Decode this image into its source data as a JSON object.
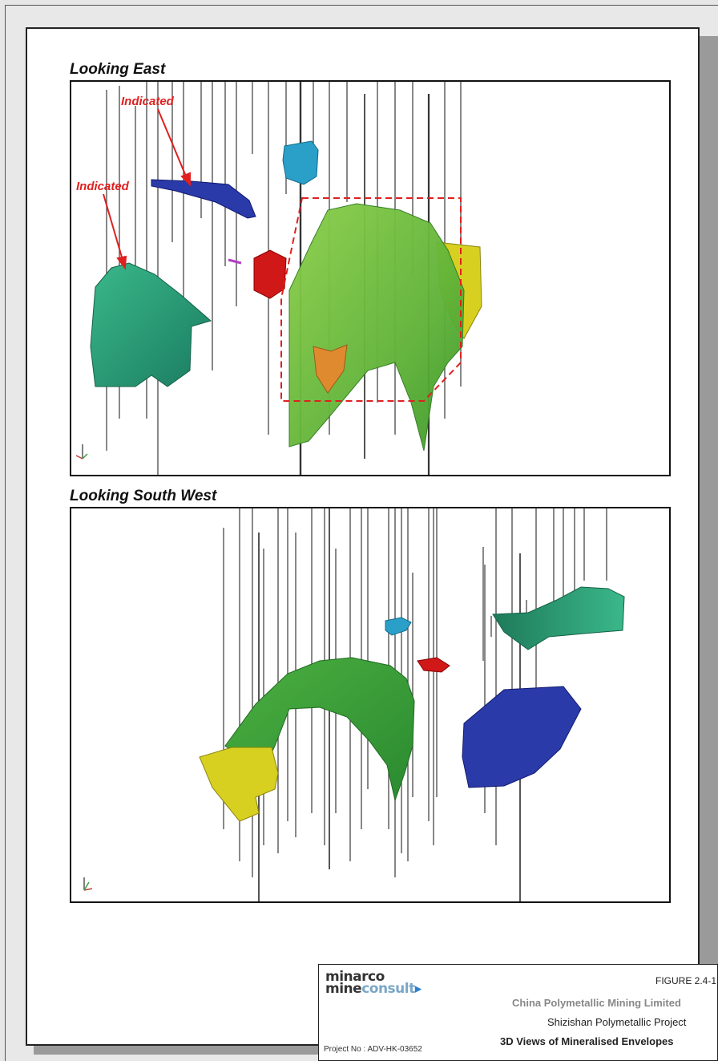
{
  "views": [
    {
      "title": "Looking East",
      "labels": [
        "Indicated",
        "Indicated"
      ]
    },
    {
      "title": "Looking South West"
    }
  ],
  "titleblock": {
    "logo_line1_a": "min",
    "logo_line1_b": "arco",
    "logo_line2_a": "mine",
    "logo_line2_b": "consult",
    "figure_no": "FIGURE 2.4-1",
    "client": "China Polymetallic Mining Limited",
    "project": "Shizishan Polymetallic Project",
    "figure_title": "3D Views of Mineralised Envelopes",
    "project_no": "Project No : ADV-HK-03652"
  },
  "colors": {
    "indicated_label": "#e02020",
    "green_envelope": "#6cbe3a",
    "teal_envelope": "#2aa37a",
    "blue_envelope": "#2a3aa8",
    "cyan_envelope": "#2aa0c8",
    "red_envelope": "#d01818",
    "yellow_envelope": "#d8d020",
    "orange_envelope": "#e08a30"
  }
}
